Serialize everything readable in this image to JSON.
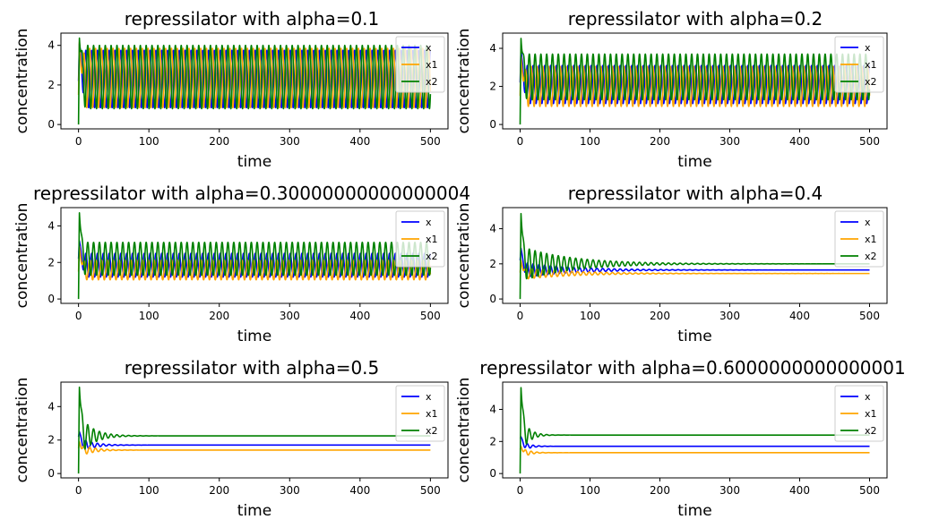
{
  "chart_data": [
    {
      "type": "line",
      "title": "repressilator with alpha=0.1",
      "xlabel": "time",
      "ylabel": "concentration",
      "xlim": [
        -25,
        525
      ],
      "ylim": [
        -0.22,
        4.62
      ],
      "xticks": [
        0,
        100,
        200,
        300,
        400,
        500
      ],
      "yticks": [
        0,
        2,
        4
      ],
      "grid": false,
      "legend_position": "top-right",
      "series": [
        {
          "name": "x",
          "color": "#0000ff",
          "start": 2.2,
          "peak": 4.1,
          "center": 2.3,
          "amplitude": 1.45,
          "damping_time": 0,
          "period": 8.3,
          "phase": 0.0,
          "t_max": 500
        },
        {
          "name": "x1",
          "color": "#ffa500",
          "start": 1.5,
          "peak": 4.2,
          "center": 2.35,
          "amplitude": 1.5,
          "damping_time": 0,
          "period": 8.3,
          "phase": 2.1,
          "t_max": 500
        },
        {
          "name": "x2",
          "color": "#008000",
          "start": 0.0,
          "peak": 4.4,
          "center": 2.4,
          "amplitude": 1.6,
          "damping_time": 0,
          "period": 8.3,
          "phase": 4.2,
          "t_max": 500
        }
      ]
    },
    {
      "type": "line",
      "title": "repressilator with alpha=0.2",
      "xlabel": "time",
      "ylabel": "concentration",
      "xlim": [
        -25,
        525
      ],
      "ylim": [
        -0.23,
        4.8
      ],
      "xticks": [
        0,
        100,
        200,
        300,
        400,
        500
      ],
      "yticks": [
        0,
        2,
        4
      ],
      "grid": false,
      "legend_position": "top-right",
      "series": [
        {
          "name": "x",
          "color": "#0000ff",
          "start": 2.2,
          "peak": 3.9,
          "center": 2.1,
          "amplitude": 1.0,
          "damping_time": 0,
          "period": 8.3,
          "phase": 0.0,
          "t_max": 500
        },
        {
          "name": "x1",
          "color": "#ffa500",
          "start": 1.5,
          "peak": 3.6,
          "center": 2.0,
          "amplitude": 1.05,
          "damping_time": 0,
          "period": 8.3,
          "phase": 2.1,
          "t_max": 500
        },
        {
          "name": "x2",
          "color": "#008000",
          "start": 0.0,
          "peak": 4.55,
          "center": 2.5,
          "amplitude": 1.2,
          "damping_time": 0,
          "period": 8.3,
          "phase": 4.2,
          "t_max": 500
        }
      ]
    },
    {
      "type": "line",
      "title": "repressilator with alpha=0.30000000000000004",
      "xlabel": "time",
      "ylabel": "concentration",
      "xlim": [
        -25,
        525
      ],
      "ylim": [
        -0.24,
        5.0
      ],
      "xticks": [
        0,
        100,
        200,
        300,
        400,
        500
      ],
      "yticks": [
        0,
        2,
        4
      ],
      "grid": false,
      "legend_position": "top-right",
      "series": [
        {
          "name": "x",
          "color": "#0000ff",
          "start": 2.2,
          "peak": 3.2,
          "center": 1.85,
          "amplitude": 0.65,
          "damping_time": 0,
          "period": 8.3,
          "phase": 0.0,
          "t_max": 500
        },
        {
          "name": "x1",
          "color": "#ffa500",
          "start": 1.5,
          "peak": 2.9,
          "center": 1.6,
          "amplitude": 0.55,
          "damping_time": 0,
          "period": 8.3,
          "phase": 2.1,
          "t_max": 500
        },
        {
          "name": "x2",
          "color": "#008000",
          "start": 0.0,
          "peak": 4.75,
          "center": 2.2,
          "amplitude": 0.9,
          "damping_time": 0,
          "period": 8.3,
          "phase": 4.2,
          "t_max": 500
        }
      ]
    },
    {
      "type": "line",
      "title": "repressilator with alpha=0.4",
      "xlabel": "time",
      "ylabel": "concentration",
      "xlim": [
        -25,
        525
      ],
      "ylim": [
        -0.25,
        5.2
      ],
      "xticks": [
        0,
        100,
        200,
        300,
        400,
        500
      ],
      "yticks": [
        0,
        2,
        4
      ],
      "grid": false,
      "legend_position": "top-right",
      "series": [
        {
          "name": "x",
          "color": "#0000ff",
          "start": 2.2,
          "peak": 2.9,
          "center": 1.65,
          "amplitude": 0.45,
          "damping_time": 70,
          "period": 8.3,
          "phase": 0.0,
          "t_max": 500
        },
        {
          "name": "x1",
          "color": "#ffa500",
          "start": 1.5,
          "peak": 2.2,
          "center": 1.45,
          "amplitude": 0.35,
          "damping_time": 70,
          "period": 8.3,
          "phase": 2.1,
          "t_max": 500
        },
        {
          "name": "x2",
          "color": "#008000",
          "start": 0.0,
          "peak": 4.9,
          "center": 2.0,
          "amplitude": 1.0,
          "damping_time": 70,
          "period": 8.3,
          "phase": 4.2,
          "t_max": 500
        }
      ]
    },
    {
      "type": "line",
      "title": "repressilator with alpha=0.5",
      "xlabel": "time",
      "ylabel": "concentration",
      "xlim": [
        -25,
        525
      ],
      "ylim": [
        -0.26,
        5.46
      ],
      "xticks": [
        0,
        100,
        200,
        300,
        400,
        500
      ],
      "yticks": [
        0,
        2,
        4
      ],
      "grid": false,
      "legend_position": "top-right",
      "series": [
        {
          "name": "x",
          "color": "#0000ff",
          "start": 2.2,
          "peak": 2.5,
          "center": 1.7,
          "amplitude": 0.45,
          "damping_time": 18,
          "period": 8.3,
          "phase": 0.0,
          "t_max": 500
        },
        {
          "name": "x1",
          "color": "#ffa500",
          "start": 1.5,
          "peak": 1.9,
          "center": 1.4,
          "amplitude": 0.4,
          "damping_time": 18,
          "period": 8.3,
          "phase": 2.1,
          "t_max": 500
        },
        {
          "name": "x2",
          "color": "#008000",
          "start": 0.0,
          "peak": 5.2,
          "center": 2.25,
          "amplitude": 1.3,
          "damping_time": 18,
          "period": 8.3,
          "phase": 4.2,
          "t_max": 500
        }
      ]
    },
    {
      "type": "line",
      "title": "repressilator with alpha=0.6000000000000001",
      "xlabel": "time",
      "ylabel": "concentration",
      "xlim": [
        -25,
        525
      ],
      "ylim": [
        -0.27,
        5.7
      ],
      "xticks": [
        0,
        100,
        200,
        300,
        400,
        500
      ],
      "yticks": [
        0,
        2,
        4
      ],
      "grid": false,
      "legend_position": "top-right",
      "series": [
        {
          "name": "x",
          "color": "#0000ff",
          "start": 2.2,
          "peak": 2.3,
          "center": 1.7,
          "amplitude": 0.4,
          "damping_time": 10,
          "period": 8.3,
          "phase": 0.0,
          "t_max": 500
        },
        {
          "name": "x1",
          "color": "#ffa500",
          "start": 1.5,
          "peak": 1.7,
          "center": 1.3,
          "amplitude": 0.4,
          "damping_time": 10,
          "period": 8.3,
          "phase": 2.1,
          "t_max": 500
        },
        {
          "name": "x2",
          "color": "#008000",
          "start": 0.0,
          "peak": 5.4,
          "center": 2.4,
          "amplitude": 1.3,
          "damping_time": 10,
          "period": 8.3,
          "phase": 4.2,
          "t_max": 500
        }
      ]
    }
  ]
}
